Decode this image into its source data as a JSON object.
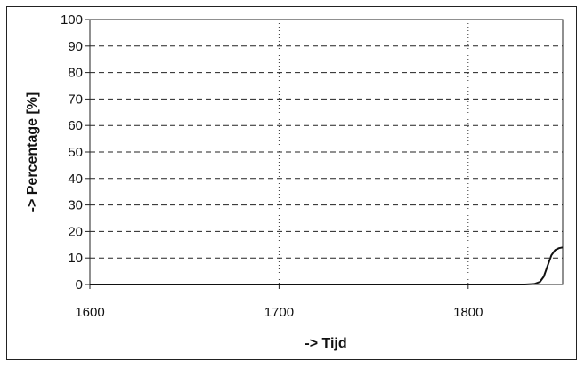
{
  "chart_data": {
    "type": "line",
    "title": "",
    "xlabel": "-> Tijd",
    "ylabel": "-> Percentage [%]",
    "xlim": [
      1600,
      1850
    ],
    "ylim": [
      0,
      100
    ],
    "x_ticks": [
      "1600",
      "1700",
      "1800"
    ],
    "y_ticks": [
      "0",
      "10",
      "20",
      "30",
      "40",
      "50",
      "60",
      "70",
      "80",
      "90",
      "100"
    ],
    "grid": {
      "horizontal": "dashed",
      "vertical": "dotted"
    },
    "legend": "none",
    "series": [
      {
        "color": "#111111",
        "x": [
          1600,
          1700,
          1780,
          1830,
          1835,
          1838,
          1840,
          1842,
          1844,
          1846,
          1848,
          1850
        ],
        "y": [
          0,
          0,
          0,
          0,
          0.2,
          1,
          3,
          7,
          11,
          13,
          13.7,
          14
        ]
      }
    ]
  }
}
